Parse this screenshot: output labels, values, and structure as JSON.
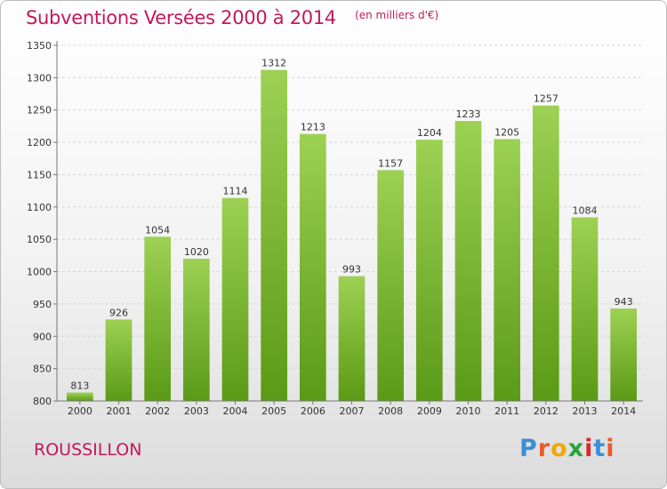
{
  "title": "Subventions Versées 2000 à 2014",
  "subtitle": "(en milliers d'€)",
  "commune": "ROUSSILLON",
  "logo": {
    "letters": [
      "P",
      "r",
      "o",
      "x",
      "i",
      "t",
      "i"
    ],
    "colors": [
      "#3a8fd6",
      "#e95a2b",
      "#f0a800",
      "#2aa23a",
      "#d9272e",
      "#3a8fd6",
      "#e95a2b"
    ]
  },
  "colors": {
    "bar_top": "#9dd153",
    "bar_bottom": "#5a9a16",
    "accent": "#c2185b"
  },
  "chart_data": {
    "type": "bar",
    "title": "Subventions Versées 2000 à 2014",
    "subtitle": "(en milliers d'€)",
    "categories": [
      "2000",
      "2001",
      "2002",
      "2003",
      "2004",
      "2005",
      "2006",
      "2007",
      "2008",
      "2009",
      "2010",
      "2011",
      "2012",
      "2013",
      "2014"
    ],
    "values": [
      813,
      926,
      1054,
      1020,
      1114,
      1312,
      1213,
      993,
      1157,
      1204,
      1233,
      1205,
      1257,
      1084,
      943
    ],
    "ylim": [
      800,
      1350
    ],
    "yticks": [
      800,
      850,
      900,
      950,
      1000,
      1050,
      1100,
      1150,
      1200,
      1250,
      1300,
      1350
    ],
    "grid": true,
    "legend": "none"
  }
}
